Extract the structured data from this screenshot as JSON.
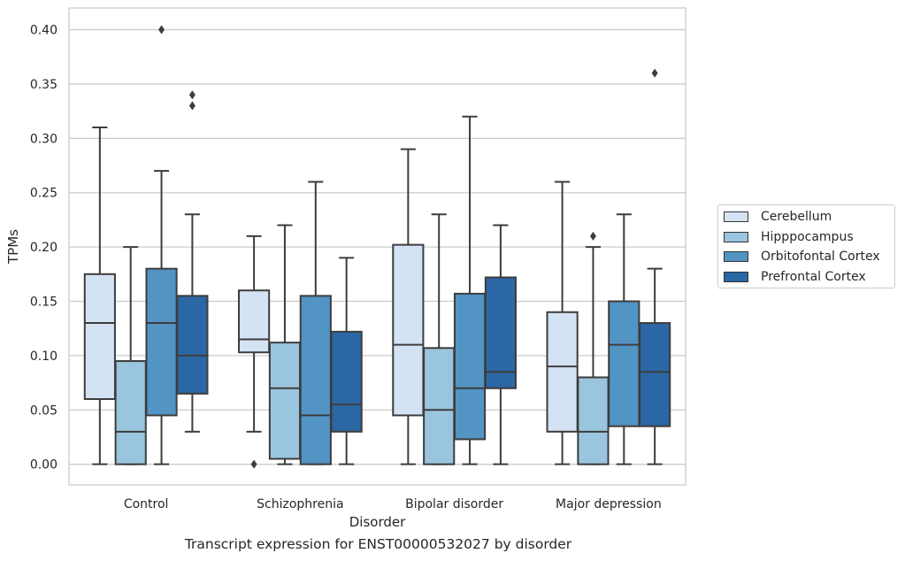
{
  "chart_data": {
    "type": "box",
    "title": "",
    "caption": "Transcript expression for ENST00000532027 by disorder",
    "xlabel": "Disorder",
    "ylabel": "TPMs",
    "ylim": [
      -0.019,
      0.42
    ],
    "yticks": [
      "0.00",
      "0.05",
      "0.10",
      "0.15",
      "0.20",
      "0.25",
      "0.30",
      "0.35",
      "0.40"
    ],
    "categories": [
      "Control",
      "Schizophrenia",
      "Bipolar disorder",
      "Major depression"
    ],
    "grid": "horizontal",
    "legend_position": "right",
    "series": [
      {
        "name": "Cerebellum",
        "color": "#d4e3f3",
        "boxes": [
          {
            "whislo": 0.0,
            "q1": 0.06,
            "med": 0.13,
            "q3": 0.175,
            "whishi": 0.31,
            "fliers": []
          },
          {
            "whislo": 0.03,
            "q1": 0.103,
            "med": 0.115,
            "q3": 0.16,
            "whishi": 0.21,
            "fliers": [
              0.0
            ]
          },
          {
            "whislo": 0.0,
            "q1": 0.045,
            "med": 0.11,
            "q3": 0.202,
            "whishi": 0.29,
            "fliers": []
          },
          {
            "whislo": 0.0,
            "q1": 0.03,
            "med": 0.09,
            "q3": 0.14,
            "whishi": 0.26,
            "fliers": []
          }
        ]
      },
      {
        "name": "Hipppocampus",
        "color": "#9ac5de",
        "boxes": [
          {
            "whislo": 0.0,
            "q1": 0.0,
            "med": 0.03,
            "q3": 0.095,
            "whishi": 0.2,
            "fliers": []
          },
          {
            "whislo": 0.0,
            "q1": 0.005,
            "med": 0.07,
            "q3": 0.112,
            "whishi": 0.22,
            "fliers": []
          },
          {
            "whislo": 0.0,
            "q1": 0.0,
            "med": 0.05,
            "q3": 0.107,
            "whishi": 0.23,
            "fliers": []
          },
          {
            "whislo": 0.0,
            "q1": 0.0,
            "med": 0.03,
            "q3": 0.08,
            "whishi": 0.2,
            "fliers": [
              0.21
            ]
          }
        ]
      },
      {
        "name": "Orbitofontal Cortex",
        "color": "#5294c4",
        "boxes": [
          {
            "whislo": 0.0,
            "q1": 0.045,
            "med": 0.13,
            "q3": 0.18,
            "whishi": 0.27,
            "fliers": [
              0.4
            ]
          },
          {
            "whislo": 0.0,
            "q1": 0.0,
            "med": 0.045,
            "q3": 0.155,
            "whishi": 0.26,
            "fliers": []
          },
          {
            "whislo": 0.0,
            "q1": 0.023,
            "med": 0.07,
            "q3": 0.157,
            "whishi": 0.32,
            "fliers": []
          },
          {
            "whislo": 0.0,
            "q1": 0.035,
            "med": 0.11,
            "q3": 0.15,
            "whishi": 0.23,
            "fliers": []
          }
        ]
      },
      {
        "name": "Prefrontal Cortex",
        "color": "#2b67a4",
        "boxes": [
          {
            "whislo": 0.03,
            "q1": 0.065,
            "med": 0.1,
            "q3": 0.155,
            "whishi": 0.23,
            "fliers": [
              0.34,
              0.33
            ]
          },
          {
            "whislo": 0.0,
            "q1": 0.03,
            "med": 0.055,
            "q3": 0.122,
            "whishi": 0.19,
            "fliers": []
          },
          {
            "whislo": 0.0,
            "q1": 0.07,
            "med": 0.085,
            "q3": 0.172,
            "whishi": 0.22,
            "fliers": []
          },
          {
            "whislo": 0.0,
            "q1": 0.035,
            "med": 0.085,
            "q3": 0.13,
            "whishi": 0.18,
            "fliers": [
              0.36
            ]
          }
        ]
      }
    ]
  }
}
